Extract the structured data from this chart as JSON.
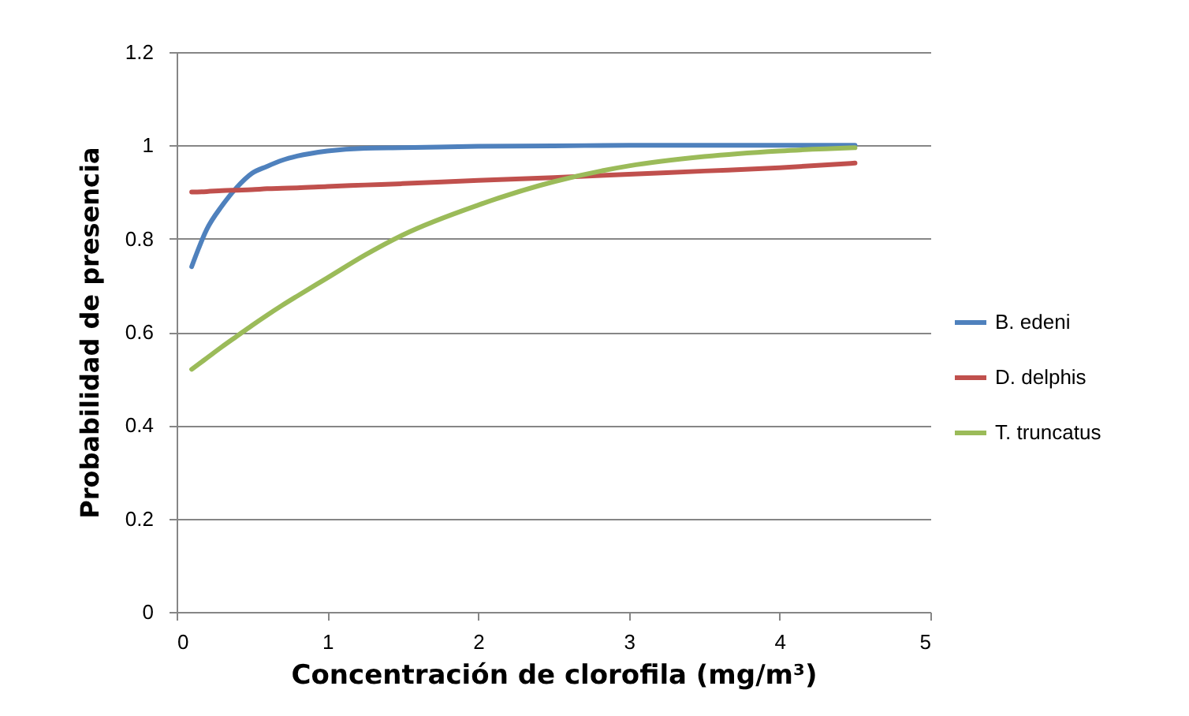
{
  "chart_data": {
    "type": "line",
    "xlabel": "Concentración de clorofila (mg/m³)",
    "ylabel": "Probabilidad de presencia",
    "xlim": [
      0,
      5
    ],
    "xticks": [
      0,
      1,
      2,
      3,
      4,
      5
    ],
    "ylim": [
      0,
      1.2
    ],
    "yticks": [
      {
        "value": 0,
        "label": "0"
      },
      0.2,
      0.4,
      0.6,
      0.8,
      {
        "value": 1,
        "label": "1"
      },
      1.2
    ],
    "grid": "y",
    "legend": "right",
    "marker": "none",
    "line_style": "solid",
    "x": [
      0.1,
      0.2,
      0.3,
      0.4,
      0.5,
      0.6,
      0.7,
      0.8,
      1,
      1.25,
      1.5,
      2,
      2.5,
      3,
      3.5,
      4,
      4.5
    ],
    "series": [
      {
        "name": "B. edeni",
        "color": "#4f81bd",
        "values": [
          0.74,
          0.82,
          0.87,
          0.91,
          0.94,
          0.955,
          0.968,
          0.977,
          0.988,
          0.994,
          0.995,
          0.998,
          0.999,
          1,
          1,
          1,
          1
        ]
      },
      {
        "name": "D. delphis",
        "color": "#c0504d",
        "values": [
          0.9,
          0.901,
          0.903,
          0.904,
          0.905,
          0.907,
          0.908,
          0.909,
          0.912,
          0.915,
          0.918,
          0.925,
          0.931,
          0.938,
          0.945,
          0.952,
          0.962
        ]
      },
      {
        "name": "T. truncatus",
        "color": "#9bbb59",
        "values": [
          0.52,
          0.544,
          0.568,
          0.591,
          0.614,
          0.636,
          0.657,
          0.677,
          0.716,
          0.765,
          0.808,
          0.872,
          0.922,
          0.956,
          0.976,
          0.988,
          0.995
        ]
      }
    ]
  }
}
